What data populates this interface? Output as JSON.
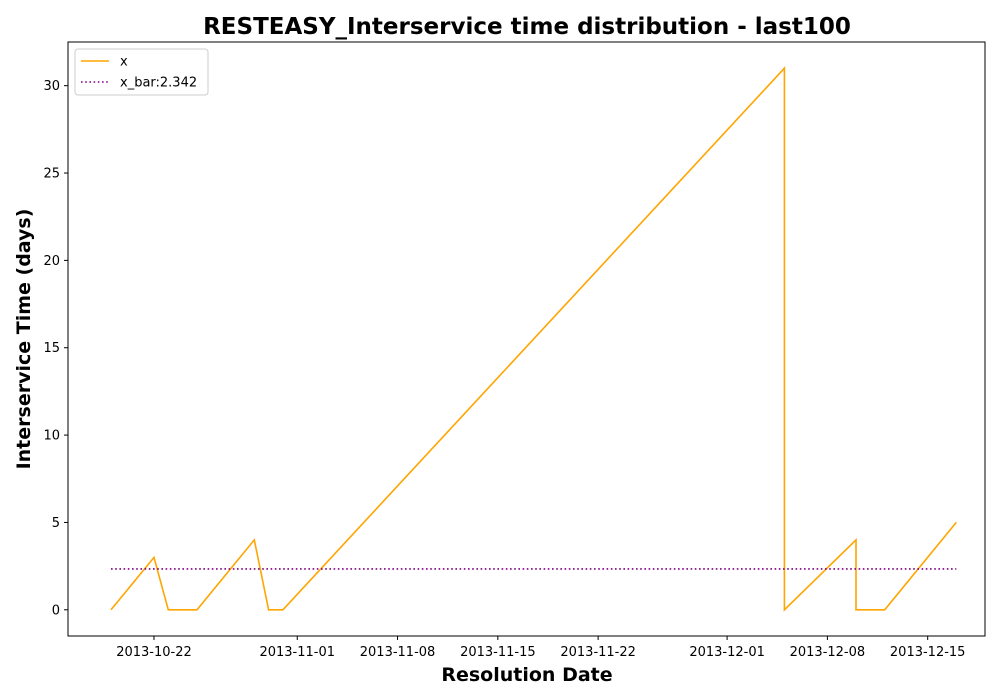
{
  "chart_data": {
    "type": "line",
    "title": "RESTEASY_Interservice time distribution - last100",
    "xlabel": "Resolution Date",
    "ylabel": "Interservice Time (days)",
    "x_ticks": [
      "2013-10-22",
      "2013-11-01",
      "2013-11-08",
      "2013-11-15",
      "2013-11-22",
      "2013-12-01",
      "2013-12-08",
      "2013-12-15"
    ],
    "y_ticks": [
      0,
      5,
      10,
      15,
      20,
      25,
      30
    ],
    "xlim": [
      "2013-10-16",
      "2013-12-19"
    ],
    "ylim": [
      -1.5,
      32.5
    ],
    "grid": false,
    "legend": {
      "position": "top-left"
    },
    "series": [
      {
        "name": "x",
        "color": "#ffa500",
        "style": "solid",
        "x": [
          "2013-10-19",
          "2013-10-22",
          "2013-10-23",
          "2013-10-25",
          "2013-10-29",
          "2013-10-30",
          "2013-10-31",
          "2013-12-05",
          "2013-12-05",
          "2013-12-10",
          "2013-12-10",
          "2013-12-12",
          "2013-12-17"
        ],
        "y": [
          0,
          3,
          0,
          0,
          4,
          0,
          0,
          31,
          0,
          4,
          0,
          0,
          5
        ]
      },
      {
        "name": "x_bar:2.342",
        "color": "#800080",
        "style": "dotted",
        "x": [
          "2013-10-19",
          "2013-12-17"
        ],
        "y": [
          2.342,
          2.342
        ]
      }
    ]
  }
}
